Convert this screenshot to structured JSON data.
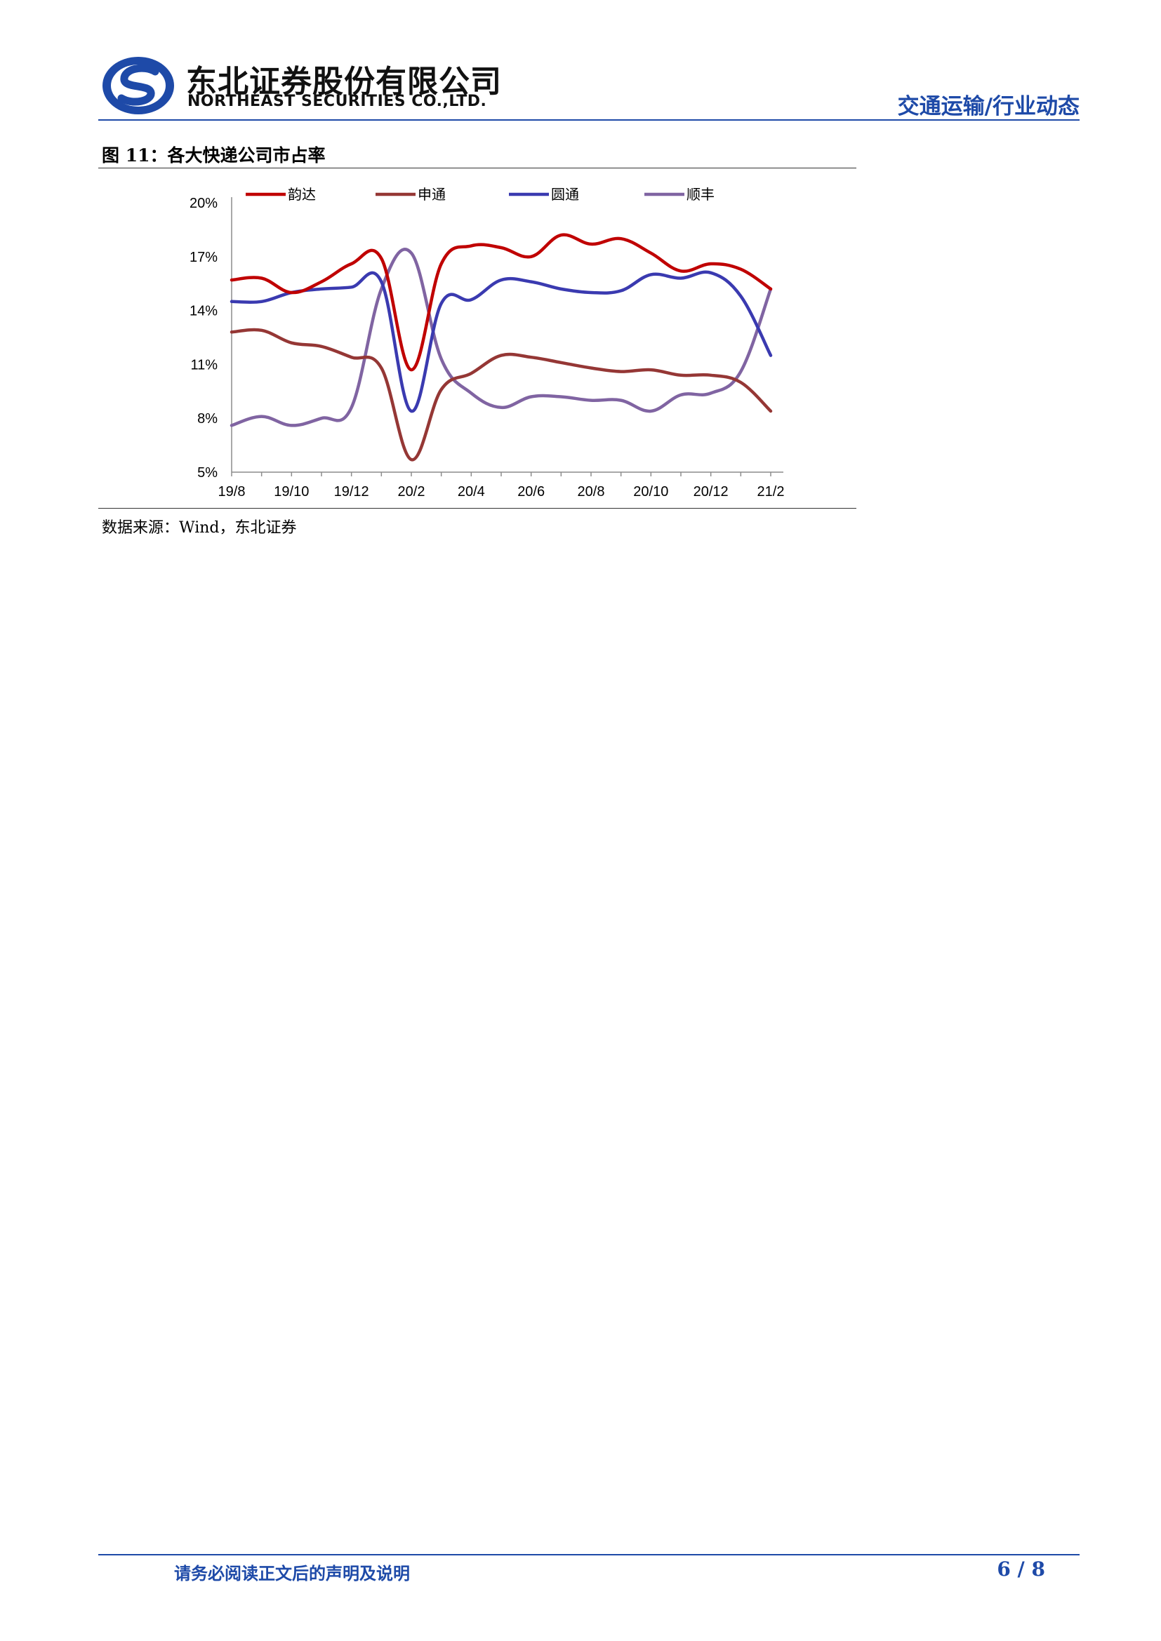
{
  "header": {
    "company_cn": "东北证券股份有限公司",
    "company_en": "NORTHEAST SECURITIES CO.,LTD.",
    "doc_type": "交通运输/行业动态"
  },
  "figure": {
    "title": "图 11：各大快递公司市占率",
    "source": "数据来源：Wind，东北证券"
  },
  "footer": {
    "note": "请务必阅读正文后的声明及说明",
    "page": "6 / 8"
  },
  "colors": {
    "brand_blue": "#1e4aa8",
    "yunda": "#c00000",
    "shentong": "#953735",
    "yuantong": "#3a3ab0",
    "shunfeng": "#8064a2"
  },
  "chart_data": {
    "type": "line",
    "title": "",
    "xlabel": "",
    "ylabel": "",
    "x": [
      "19/8",
      "19/9",
      "19/10",
      "19/11",
      "19/12",
      "20/1",
      "20/2",
      "20/3",
      "20/4",
      "20/5",
      "20/6",
      "20/7",
      "20/8",
      "20/9",
      "20/10",
      "20/11",
      "20/12",
      "21/1",
      "21/2"
    ],
    "x_tick_labels": [
      "19/8",
      "19/10",
      "19/12",
      "20/2",
      "20/4",
      "20/6",
      "20/8",
      "20/10",
      "20/12",
      "21/2"
    ],
    "y_ticks": [
      "5%",
      "8%",
      "11%",
      "14%",
      "17%",
      "20%"
    ],
    "ylim": [
      5,
      20
    ],
    "y_unit": "%",
    "grid": false,
    "legend_position": "top",
    "series": [
      {
        "name": "韵达",
        "color": "#c00000",
        "values": [
          15.7,
          15.8,
          15.0,
          15.6,
          16.6,
          16.9,
          10.7,
          16.6,
          17.6,
          17.5,
          17.0,
          18.2,
          17.7,
          18.0,
          17.2,
          16.2,
          16.6,
          16.3,
          15.2
        ]
      },
      {
        "name": "申通",
        "color": "#953735",
        "values": [
          12.8,
          12.9,
          12.2,
          12.0,
          11.4,
          10.8,
          5.7,
          9.6,
          10.5,
          11.5,
          11.4,
          11.1,
          10.8,
          10.6,
          10.7,
          10.4,
          10.4,
          10.0,
          8.4
        ]
      },
      {
        "name": "圆通",
        "color": "#3a3ab0",
        "values": [
          14.5,
          14.5,
          15.0,
          15.2,
          15.3,
          15.6,
          8.4,
          14.4,
          14.6,
          15.7,
          15.6,
          15.2,
          15.0,
          15.1,
          16.0,
          15.8,
          16.1,
          14.8,
          11.5
        ]
      },
      {
        "name": "顺丰",
        "color": "#8064a2",
        "values": [
          7.6,
          8.1,
          7.6,
          8.0,
          8.6,
          15.2,
          17.2,
          11.3,
          9.4,
          8.6,
          9.2,
          9.2,
          9.0,
          9.0,
          8.4,
          9.3,
          9.4,
          10.6,
          15.2
        ]
      }
    ]
  }
}
